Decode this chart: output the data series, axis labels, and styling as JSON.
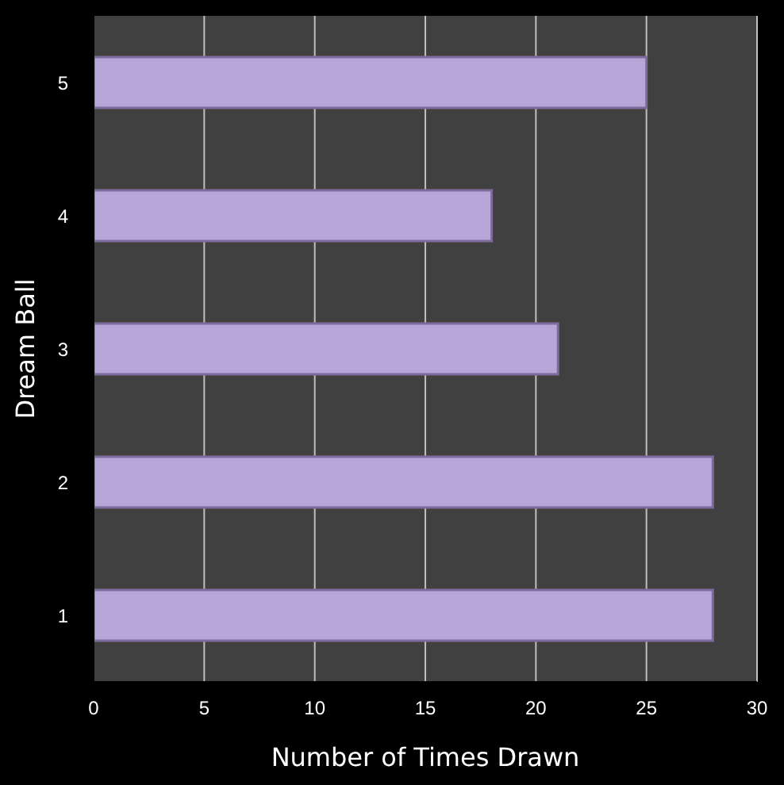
{
  "chart_data": {
    "type": "bar",
    "orientation": "horizontal",
    "xlabel": "Number of Times Drawn",
    "ylabel": "Dream Ball",
    "categories": [
      "5",
      "4",
      "3",
      "2",
      "1"
    ],
    "values": [
      25,
      18,
      21,
      28,
      28
    ],
    "color": "#b9a6d8",
    "xlim": [
      0,
      30
    ],
    "xticks": [
      0,
      5,
      10,
      15,
      20,
      25,
      30
    ],
    "grid": "x"
  }
}
